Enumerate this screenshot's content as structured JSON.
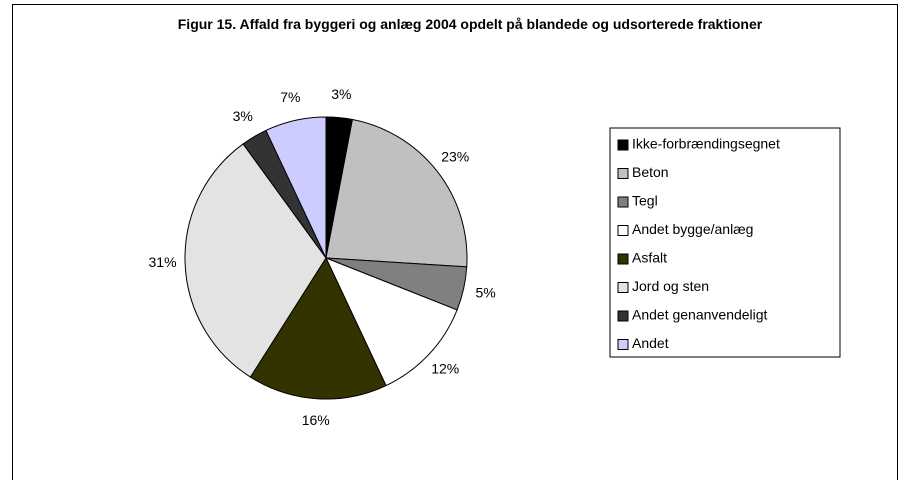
{
  "chart_data": {
    "type": "pie",
    "title": "Figur 15. Affald fra byggeri og anlæg 2004 opdelt på blandede og udsorterede fraktioner",
    "categories": [
      "Ikke-forbrændingsegnet",
      "Beton",
      "Tegl",
      "Andet bygge/anlæg",
      "Asfalt",
      "Jord og sten",
      "Andet genanvendeligt",
      "Andet"
    ],
    "values": [
      3,
      23,
      5,
      12,
      16,
      31,
      3,
      7
    ],
    "value_labels": [
      "3%",
      "23%",
      "5%",
      "12%",
      "16%",
      "31%",
      "3%",
      "7%"
    ],
    "colors": [
      "#000000",
      "#c0c0c0",
      "#808080",
      "#ffffff",
      "#333300",
      "#e3e3e3",
      "#333333",
      "#ccccff"
    ],
    "legend": "right"
  }
}
